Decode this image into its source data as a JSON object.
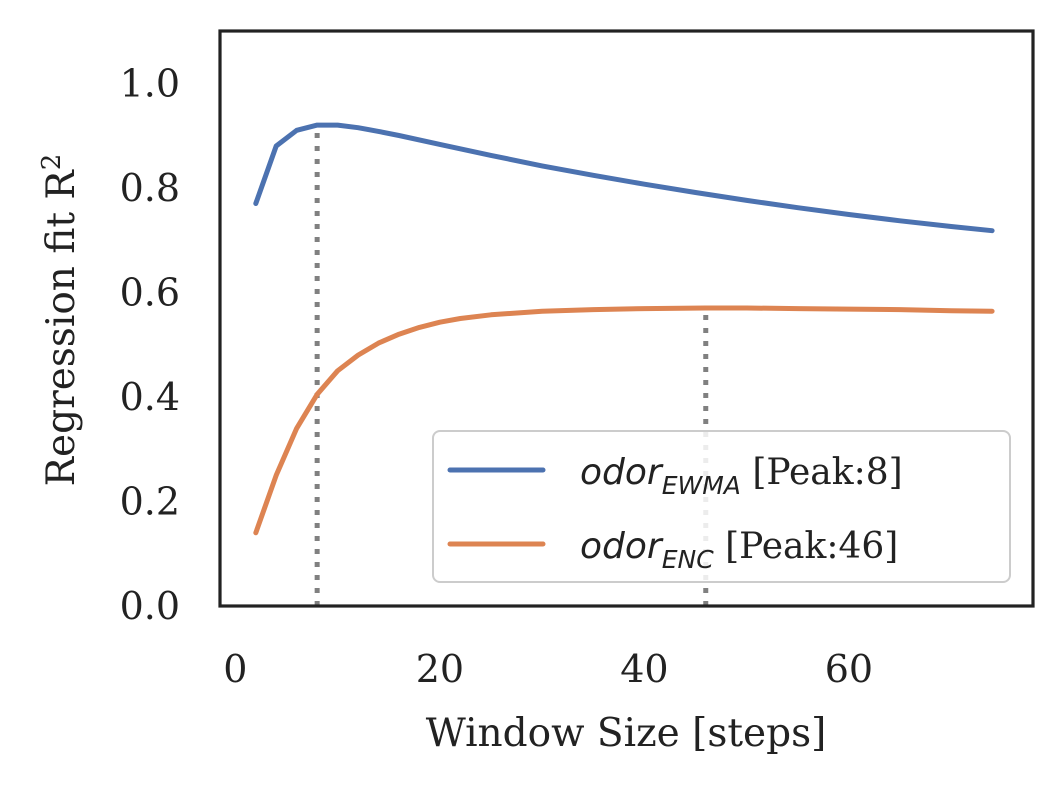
{
  "chart_data": {
    "type": "line",
    "title": "",
    "xlabel": "Window Size [steps]",
    "ylabel": "Regression fit R",
    "ylabel_superscript": "2",
    "xlim": [
      -1.5,
      78
    ],
    "ylim": [
      0.0,
      1.1
    ],
    "xticks": [
      0,
      20,
      40,
      60
    ],
    "xtick_labels": [
      "0",
      "20",
      "40",
      "60"
    ],
    "yticks": [
      0.0,
      0.2,
      0.4,
      0.6,
      0.8,
      1.0
    ],
    "ytick_labels": [
      "0.0",
      "0.2",
      "0.4",
      "0.6",
      "0.8",
      "1.0"
    ],
    "grid": false,
    "legend_position": "bottom-right",
    "series": [
      {
        "name": "odor",
        "subscript": "EWMA",
        "suffix": "[Peak:8]",
        "color": "#4c72b0",
        "peak": 8,
        "x": [
          2,
          4,
          6,
          8,
          10,
          12,
          14,
          16,
          20,
          25,
          30,
          35,
          40,
          45,
          50,
          55,
          60,
          65,
          70,
          74
        ],
        "values": [
          0.77,
          0.88,
          0.91,
          0.92,
          0.92,
          0.915,
          0.908,
          0.9,
          0.883,
          0.862,
          0.842,
          0.824,
          0.807,
          0.791,
          0.776,
          0.762,
          0.749,
          0.737,
          0.726,
          0.718
        ]
      },
      {
        "name": "odor",
        "subscript": "ENC",
        "suffix": "[Peak:46]",
        "color": "#dd8452",
        "peak": 46,
        "x": [
          2,
          4,
          6,
          8,
          10,
          12,
          14,
          16,
          18,
          20,
          22,
          25,
          30,
          35,
          40,
          46,
          50,
          55,
          60,
          65,
          70,
          74
        ],
        "values": [
          0.14,
          0.25,
          0.34,
          0.405,
          0.45,
          0.48,
          0.503,
          0.52,
          0.533,
          0.543,
          0.55,
          0.557,
          0.564,
          0.567,
          0.569,
          0.57,
          0.57,
          0.569,
          0.568,
          0.567,
          0.565,
          0.564
        ]
      }
    ],
    "vlines": [
      {
        "x": 8,
        "y_top": 0.92,
        "color": "#808080"
      },
      {
        "x": 46,
        "y_top": 0.57,
        "color": "#808080"
      }
    ]
  }
}
